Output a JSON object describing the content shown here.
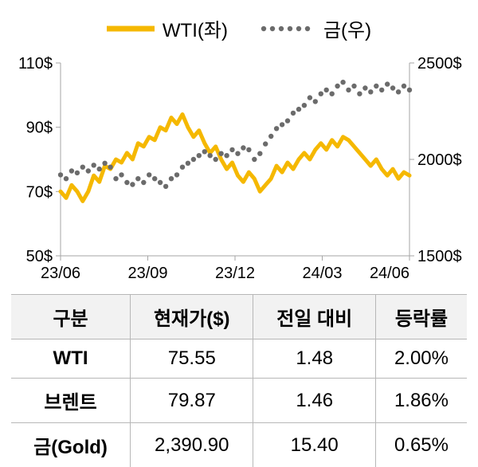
{
  "legend": {
    "wti": {
      "label": "WTI(좌)",
      "color": "#f5b800",
      "line_width": 5,
      "style": "solid"
    },
    "gold": {
      "label": "금(우)",
      "color": "#6b6b6b",
      "marker_size": 3.2,
      "style": "dotted"
    }
  },
  "chart": {
    "type": "line-dual-axis",
    "background_color": "#ffffff",
    "axis_color": "#a6a6a6",
    "label_fontsize": 20,
    "x": {
      "ticks": [
        "23/06",
        "23/09",
        "23/12",
        "24/03",
        "24/06"
      ],
      "range": [
        0,
        4
      ]
    },
    "y_left": {
      "label_suffix": "$",
      "ticks": [
        50,
        70,
        90,
        110
      ],
      "range": [
        50,
        110
      ]
    },
    "y_right": {
      "label_suffix": "$",
      "ticks": [
        1500,
        2000,
        2500
      ],
      "range": [
        1500,
        2500
      ]
    },
    "series": {
      "wti": {
        "axis": "left",
        "color": "#f5b800",
        "line_width": 5,
        "data": [
          70,
          68,
          72,
          70,
          67,
          70,
          75,
          73,
          78,
          77,
          80,
          79,
          82,
          80,
          85,
          84,
          87,
          86,
          90,
          89,
          93,
          91,
          94,
          90,
          87,
          89,
          85,
          82,
          84,
          80,
          77,
          79,
          75,
          73,
          76,
          74,
          70,
          72,
          74,
          78,
          76,
          79,
          77,
          80,
          82,
          80,
          83,
          85,
          83,
          86,
          84,
          87,
          86,
          84,
          82,
          80,
          78,
          80,
          77,
          75,
          77,
          74,
          76,
          75
        ]
      },
      "gold": {
        "axis": "right",
        "color": "#6b6b6b",
        "marker_size": 3.2,
        "data": [
          1920,
          1900,
          1940,
          1930,
          1960,
          1940,
          1970,
          1950,
          1980,
          1960,
          1900,
          1920,
          1880,
          1870,
          1900,
          1880,
          1920,
          1900,
          1880,
          1860,
          1900,
          1920,
          1960,
          1980,
          2000,
          2020,
          2040,
          2020,
          2000,
          2030,
          2020,
          2050,
          2030,
          2060,
          2050,
          2000,
          2030,
          2080,
          2120,
          2160,
          2180,
          2200,
          2240,
          2260,
          2280,
          2320,
          2300,
          2340,
          2360,
          2340,
          2380,
          2400,
          2360,
          2380,
          2340,
          2370,
          2350,
          2380,
          2360,
          2390,
          2370,
          2350,
          2380,
          2360
        ]
      }
    }
  },
  "table": {
    "columns": [
      "구분",
      "현재가($)",
      "전일 대비",
      "등락률"
    ],
    "rows": [
      {
        "label": "WTI",
        "price": "75.55",
        "change": "1.48",
        "pct": "2.00%"
      },
      {
        "label": "브렌트",
        "price": "79.87",
        "change": "1.46",
        "pct": "1.86%"
      },
      {
        "label": "금(Gold)",
        "price": "2,390.90",
        "change": "15.40",
        "pct": "0.65%"
      }
    ]
  }
}
